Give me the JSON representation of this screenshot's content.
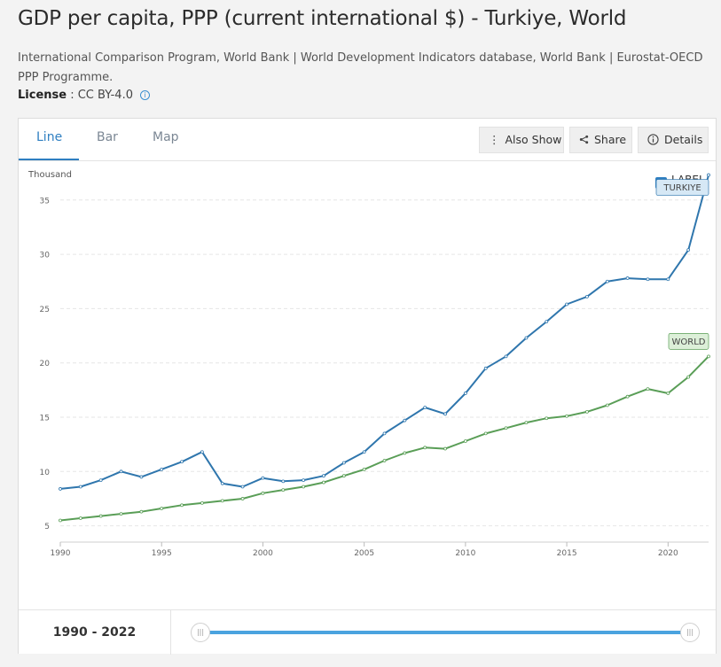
{
  "page": {
    "title": "GDP per capita, PPP (current international $) - Turkiye, World",
    "source": "International Comparison Program, World Bank | World Development Indicators database, World Bank | Eurostat-OECD PPP Programme.",
    "license_label": "License",
    "license_value": " : CC BY-4.0",
    "info_glyph": "i"
  },
  "tabs": [
    "Line",
    "Bar",
    "Map"
  ],
  "toolbar": {
    "also_show": "Also Show",
    "share": "Share",
    "details": "Details"
  },
  "label_toggle": {
    "text": "LABEL",
    "checked": true
  },
  "footer": {
    "range_text": "1990 - 2022"
  },
  "chart_data": {
    "type": "line",
    "ylabel": "Thousand",
    "xlim": [
      1990,
      2022
    ],
    "ylim": [
      3.5,
      38
    ],
    "x_ticks": [
      1990,
      1995,
      2000,
      2005,
      2010,
      2015,
      2020
    ],
    "y_ticks": [
      5,
      10,
      15,
      20,
      25,
      30,
      35
    ],
    "grid": true,
    "x": [
      1990,
      1991,
      1992,
      1993,
      1994,
      1995,
      1996,
      1997,
      1998,
      1999,
      2000,
      2001,
      2002,
      2003,
      2004,
      2005,
      2006,
      2007,
      2008,
      2009,
      2010,
      2011,
      2012,
      2013,
      2014,
      2015,
      2016,
      2017,
      2018,
      2019,
      2020,
      2021,
      2022
    ],
    "series": [
      {
        "name": "TURKIYE",
        "color": "#2f76ad",
        "label_bg": "#d6e8f5",
        "values": [
          8.4,
          8.6,
          9.2,
          10.0,
          9.5,
          10.2,
          10.9,
          11.8,
          8.9,
          8.6,
          9.4,
          9.1,
          9.2,
          9.6,
          10.8,
          11.8,
          13.5,
          14.7,
          15.9,
          15.3,
          17.2,
          19.5,
          20.6,
          22.3,
          23.8,
          25.4,
          26.1,
          27.5,
          27.8,
          27.7,
          27.7,
          30.4,
          37.3
        ]
      },
      {
        "name": "WORLD",
        "color": "#5a9e57",
        "label_bg": "#dcefd8",
        "values": [
          5.5,
          5.7,
          5.9,
          6.1,
          6.3,
          6.6,
          6.9,
          7.1,
          7.3,
          7.5,
          8.0,
          8.3,
          8.6,
          9.0,
          9.6,
          10.2,
          11.0,
          11.7,
          12.2,
          12.1,
          12.8,
          13.5,
          14.0,
          14.5,
          14.9,
          15.1,
          15.5,
          16.1,
          16.9,
          17.6,
          17.2,
          18.7,
          20.6
        ]
      }
    ]
  }
}
